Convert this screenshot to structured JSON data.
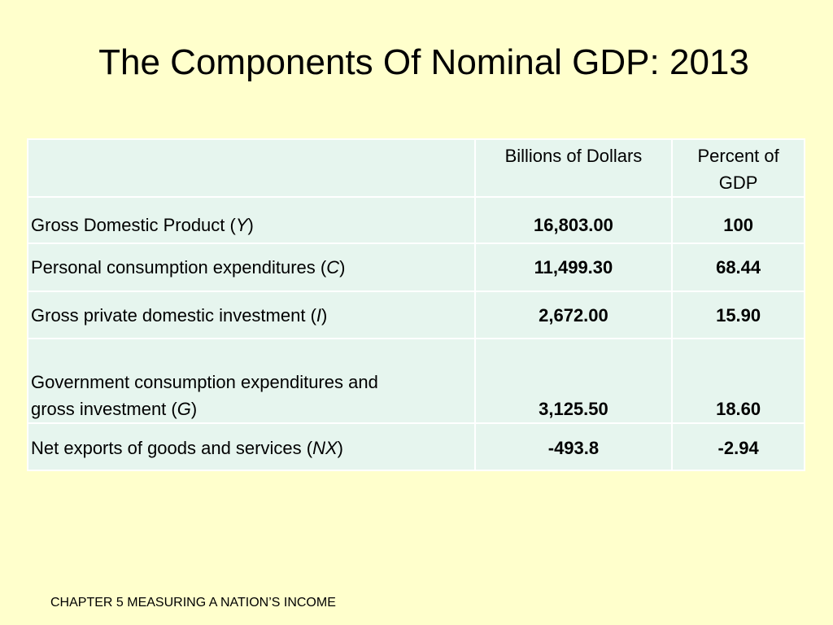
{
  "slide": {
    "title": "The Components Of Nominal GDP: 2013",
    "footer": "CHAPTER 5 MEASURING A NATION’S INCOME"
  },
  "table": {
    "headers": {
      "label": "",
      "billions": "Billions of Dollars",
      "percent_line1": "Percent of",
      "percent_line2": "GDP"
    },
    "rows": [
      {
        "label_prefix": "Gross Domestic Product (",
        "variable": "Y",
        "label_suffix": ")",
        "billions": "16,803.00",
        "percent": "100"
      },
      {
        "label_prefix": "Personal consumption expenditures (",
        "variable": "C",
        "label_suffix": ")",
        "billions": "11,499.30",
        "percent": "68.44"
      },
      {
        "label_prefix": "Gross private domestic investment (",
        "variable": "I",
        "label_suffix": ")",
        "billions": "2,672.00",
        "percent": "15.90"
      },
      {
        "label_line1": "Government consumption expenditures and",
        "label_prefix": "gross investment (",
        "variable": "G",
        "label_suffix": ")",
        "billions": "3,125.50",
        "percent": "18.60"
      },
      {
        "label_prefix": "Net exports of goods and services (",
        "variable": "NX",
        "label_suffix": ")",
        "billions": "-493.8",
        "percent": "-2.94"
      }
    ]
  },
  "colors": {
    "background": "#ffffcc",
    "table_cell": "#e6f5ee",
    "table_border": "#ffffff"
  }
}
